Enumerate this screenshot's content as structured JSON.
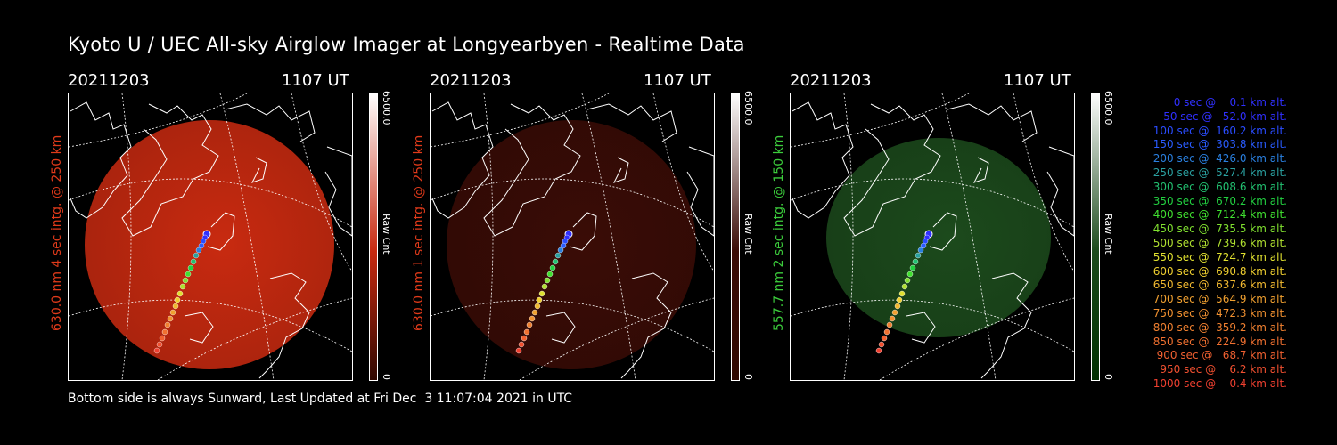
{
  "title": "Kyoto U / UEC All-sky Airglow Imager at Longyearbyen - Realtime Data",
  "footer": "Bottom side is always Sunward, Last Updated at Fri Dec  3 11:07:04 2021 in UTC",
  "panels": [
    {
      "date": "20211203",
      "time": "1107 UT",
      "ylabel": "630.0 nm  4 sec intg. @ 250 km",
      "label_color": "#e03a1a",
      "cbar_max": "6500.0",
      "cbar_min": "0",
      "cbar_unit": "Raw Cnt",
      "image_color": "#c82a10",
      "cbar_top": "#ffffff",
      "cbar_bottom": "#300800"
    },
    {
      "date": "20211203",
      "time": "1107 UT",
      "ylabel": "630.0 nm  1 sec intg. @ 250 km",
      "label_color": "#e03a1a",
      "cbar_max": "6500.0",
      "cbar_min": "0",
      "cbar_unit": "Raw Cnt",
      "image_color": "#3a0c06",
      "cbar_top": "#ffffff",
      "cbar_bottom": "#300800"
    },
    {
      "date": "20211203",
      "time": "1107 UT",
      "ylabel": "557.7 nm  2 sec intg. @ 150 km",
      "label_color": "#3ccc3c",
      "cbar_max": "6500.0",
      "cbar_min": "0",
      "cbar_unit": "Raw Cnt",
      "image_color": "#1c4a1c",
      "cbar_top": "#ffffff",
      "cbar_bottom": "#003000"
    }
  ],
  "legend": [
    {
      "text": "0 sec @    0.1 km alt.",
      "color": "#3030ff"
    },
    {
      "text": "50 sec @   52.0 km alt.",
      "color": "#3030ff"
    },
    {
      "text": "100 sec @  160.2 km alt.",
      "color": "#2a4cff"
    },
    {
      "text": "150 sec @  303.8 km alt.",
      "color": "#2a5cff"
    },
    {
      "text": "200 sec @  426.0 km alt.",
      "color": "#2a80e0"
    },
    {
      "text": "250 sec @  527.4 km alt.",
      "color": "#2aa0a0"
    },
    {
      "text": "300 sec @  608.6 km alt.",
      "color": "#22c070"
    },
    {
      "text": "350 sec @  670.2 km alt.",
      "color": "#22d040"
    },
    {
      "text": "400 sec @  712.4 km alt.",
      "color": "#40e030"
    },
    {
      "text": "450 sec @  735.5 km alt.",
      "color": "#80e030"
    },
    {
      "text": "500 sec @  739.6 km alt.",
      "color": "#b0e030"
    },
    {
      "text": "550 sec @  724.7 km alt.",
      "color": "#e0e030"
    },
    {
      "text": "600 sec @  690.8 km alt.",
      "color": "#f0d030"
    },
    {
      "text": "650 sec @  637.6 km alt.",
      "color": "#f0b830"
    },
    {
      "text": "700 sec @  564.9 km alt.",
      "color": "#f0a030"
    },
    {
      "text": "750 sec @  472.3 km alt.",
      "color": "#f09030"
    },
    {
      "text": "800 sec @  359.2 km alt.",
      "color": "#f08030"
    },
    {
      "text": "850 sec @  224.9 km alt.",
      "color": "#f07030"
    },
    {
      "text": "900 sec @   68.7 km alt.",
      "color": "#f06030"
    },
    {
      "text": "950 sec @    6.2 km alt.",
      "color": "#f05030"
    },
    {
      "text": "1000 sec @    0.4 km alt.",
      "color": "#f04030"
    }
  ]
}
